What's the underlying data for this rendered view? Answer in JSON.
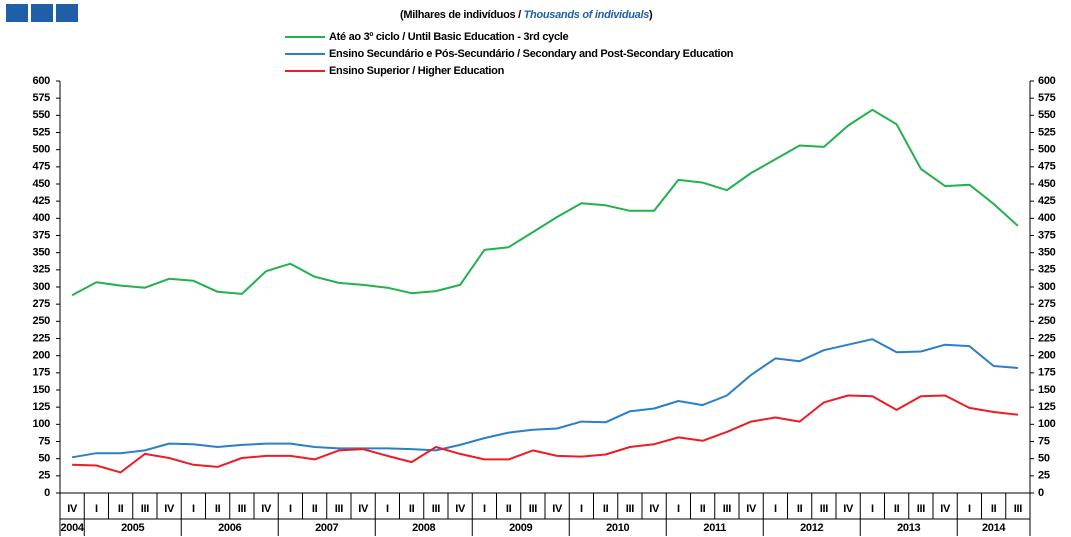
{
  "chart_data": {
    "type": "line",
    "subtitle_parts": [
      "(Milhares de indivíduos  / ",
      "Thousands of individuals",
      ")"
    ],
    "categories": [
      "IV",
      "I",
      "II",
      "III",
      "IV",
      "I",
      "II",
      "III",
      "IV",
      "I",
      "II",
      "III",
      "IV",
      "I",
      "II",
      "III",
      "IV",
      "I",
      "II",
      "III",
      "IV",
      "I",
      "II",
      "III",
      "IV",
      "I",
      "II",
      "III",
      "IV",
      "I",
      "II",
      "III",
      "IV",
      "I",
      "II",
      "III",
      "IV",
      "I",
      "II",
      "III"
    ],
    "years": [
      "2004",
      "2005",
      "2006",
      "2007",
      "2008",
      "2009",
      "2010",
      "2011",
      "2012",
      "2013",
      "2014"
    ],
    "series": [
      {
        "name": "Até ao 3º ciclo / Until Basic Education - 3rd cycle",
        "color": "#22b14c",
        "values": [
          288,
          307,
          302,
          299,
          312,
          309,
          293,
          290,
          323,
          334,
          315,
          306,
          303,
          299,
          291,
          294,
          303,
          354,
          358,
          380,
          402,
          422,
          419,
          411,
          411,
          456,
          452,
          441,
          466,
          486,
          506,
          504,
          535,
          558,
          537,
          472,
          447,
          449,
          421,
          389
        ]
      },
      {
        "name": "Ensino Secundário e Pós-Secundário / Secondary and Post-Secondary Education",
        "color": "#2a7fc9",
        "values": [
          52,
          58,
          58,
          62,
          72,
          71,
          67,
          70,
          72,
          72,
          67,
          65,
          65,
          65,
          64,
          62,
          70,
          80,
          88,
          92,
          94,
          104,
          103,
          119,
          123,
          134,
          128,
          142,
          172,
          196,
          192,
          208,
          216,
          224,
          205,
          206,
          216,
          214,
          185,
          182
        ]
      },
      {
        "name": "Ensino Superior / Higher Education",
        "color": "#ee1c25",
        "values": [
          41,
          40,
          30,
          57,
          51,
          41,
          38,
          51,
          54,
          54,
          49,
          62,
          64,
          54,
          45,
          67,
          57,
          49,
          49,
          62,
          54,
          53,
          56,
          67,
          71,
          81,
          76,
          89,
          104,
          110,
          104,
          132,
          142,
          141,
          121,
          141,
          142,
          124,
          118,
          114
        ]
      }
    ],
    "ylim": [
      0,
      600
    ],
    "yticks": [
      0,
      25,
      50,
      75,
      100,
      125,
      150,
      175,
      200,
      225,
      250,
      275,
      300,
      325,
      350,
      375,
      400,
      425,
      450,
      475,
      500,
      525,
      550,
      575,
      600
    ],
    "y2lim": [
      0,
      600
    ],
    "y2ticks": [
      0,
      25,
      50,
      75,
      100,
      125,
      150,
      175,
      200,
      225,
      250,
      275,
      300,
      325,
      350,
      375,
      400,
      425,
      450,
      475,
      500,
      525,
      550,
      575,
      600
    ],
    "grid": false
  }
}
